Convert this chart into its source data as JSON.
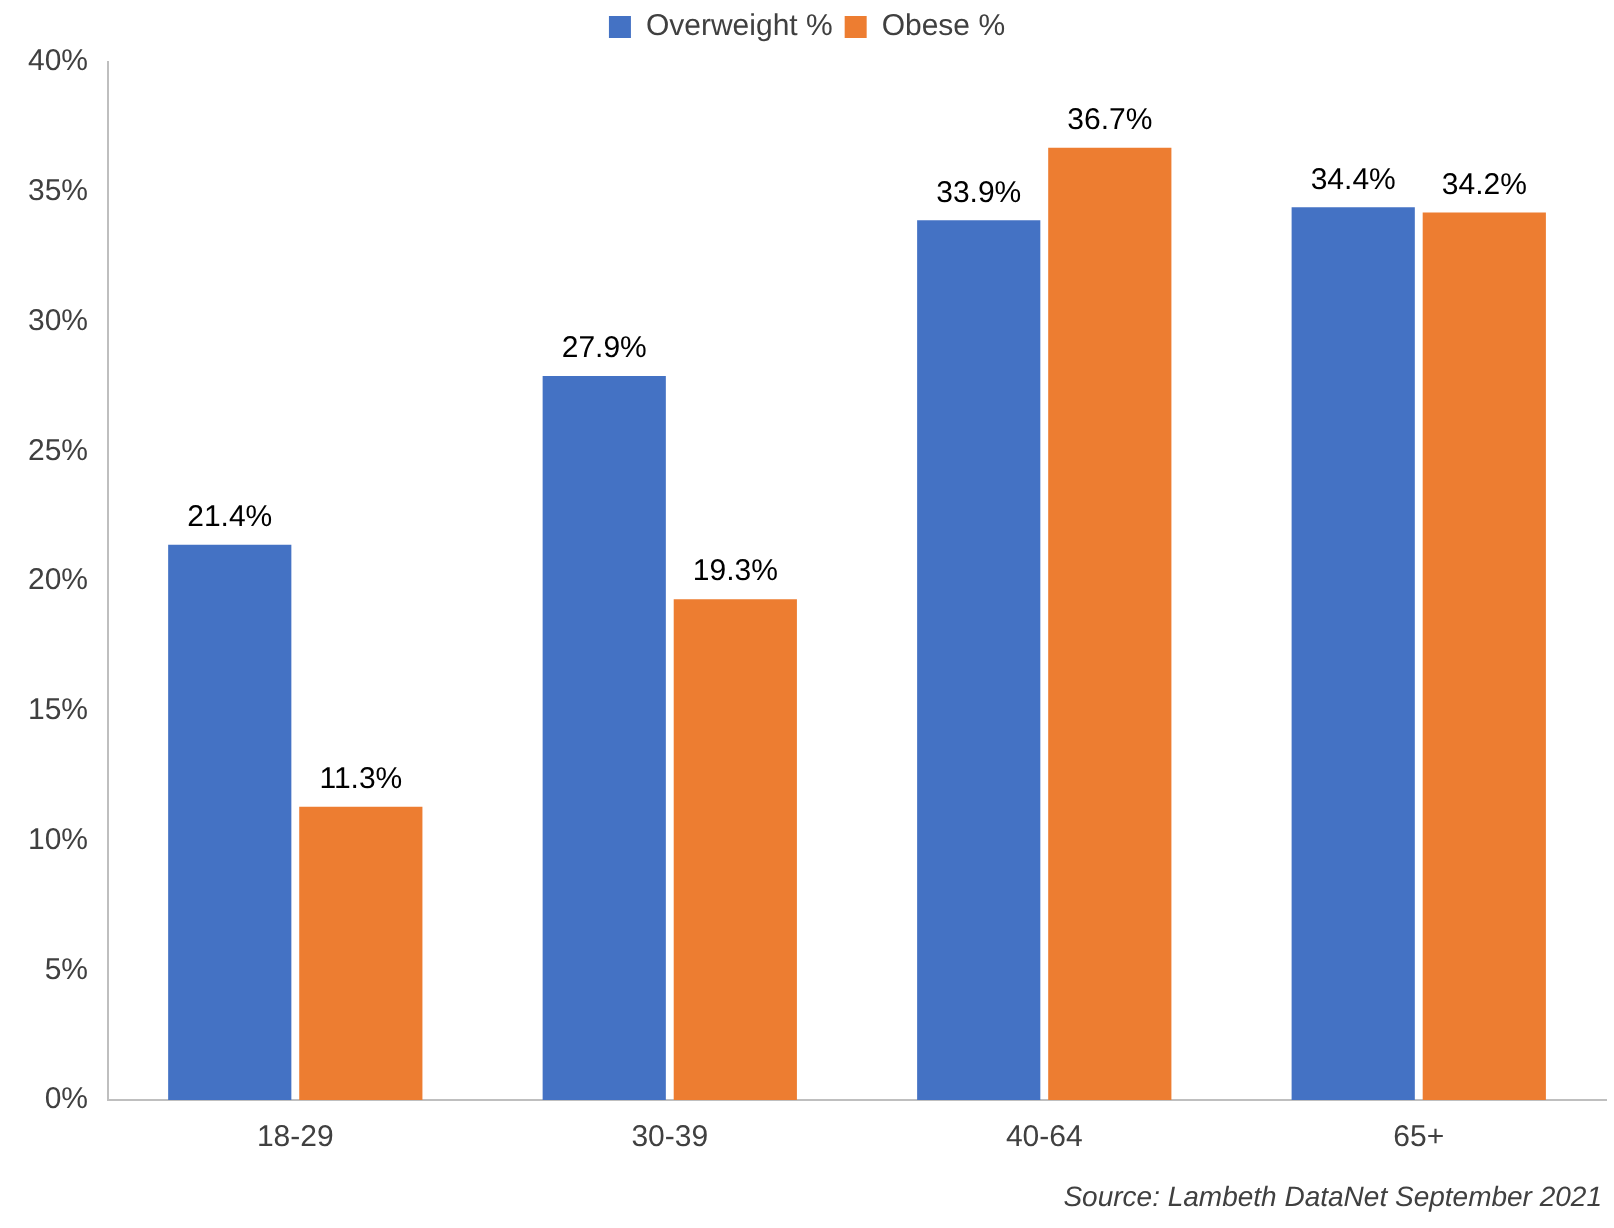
{
  "chart_data": {
    "type": "bar",
    "categories": [
      "18-29",
      "30-39",
      "40-64",
      "65+"
    ],
    "series": [
      {
        "name": "Overweight %",
        "color": "#4472c4",
        "values": [
          21.4,
          27.9,
          33.9,
          34.4
        ],
        "value_labels": [
          "21.4%",
          "27.9%",
          "33.9%",
          "34.4%"
        ]
      },
      {
        "name": "Obese %",
        "color": "#ed7d31",
        "values": [
          11.3,
          19.3,
          36.7,
          34.2
        ],
        "value_labels": [
          "11.3%",
          "19.3%",
          "36.7%",
          "34.2%"
        ]
      }
    ],
    "ylim": [
      0,
      40
    ],
    "yticks": [
      {
        "value": 0,
        "label": "0%"
      },
      {
        "value": 5,
        "label": "5%"
      },
      {
        "value": 10,
        "label": "10%"
      },
      {
        "value": 15,
        "label": "15%"
      },
      {
        "value": 20,
        "label": "20%"
      },
      {
        "value": 25,
        "label": "25%"
      },
      {
        "value": 30,
        "label": "30%"
      },
      {
        "value": 35,
        "label": "35%"
      },
      {
        "value": 40,
        "label": "40%"
      }
    ],
    "grid": false,
    "legend": "top",
    "annotations": [
      "Source: Lambeth DataNet September 2021"
    ]
  }
}
